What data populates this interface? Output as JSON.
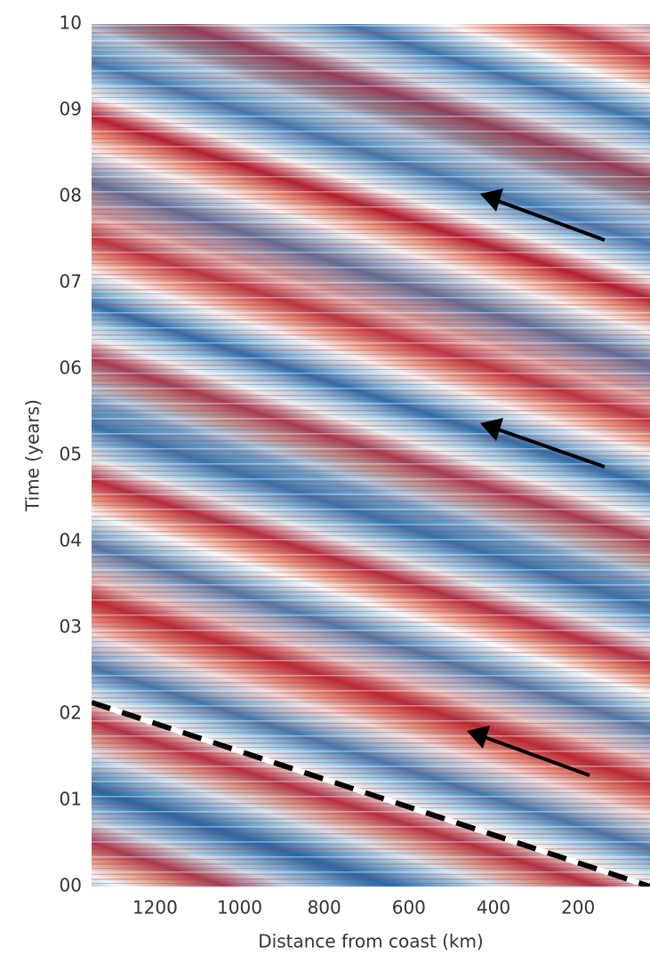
{
  "chart_data": {
    "type": "heatmap",
    "xlabel": "Distance from coast (km)",
    "ylabel": "Time (years)",
    "xlim": [
      1350,
      30
    ],
    "xticks": [
      1200,
      1000,
      800,
      600,
      400,
      200
    ],
    "ylim": [
      0,
      10
    ],
    "yticks": [
      {
        "value": 0,
        "label": "00"
      },
      {
        "value": 1,
        "label": "01"
      },
      {
        "value": 2,
        "label": "02"
      },
      {
        "value": 3,
        "label": "03"
      },
      {
        "value": 4,
        "label": "04"
      },
      {
        "value": 5,
        "label": "05"
      },
      {
        "value": 6,
        "label": "06"
      },
      {
        "value": 7,
        "label": "07"
      },
      {
        "value": 8,
        "label": "08"
      },
      {
        "value": 9,
        "label": "09"
      },
      10
    ]
  }
}
